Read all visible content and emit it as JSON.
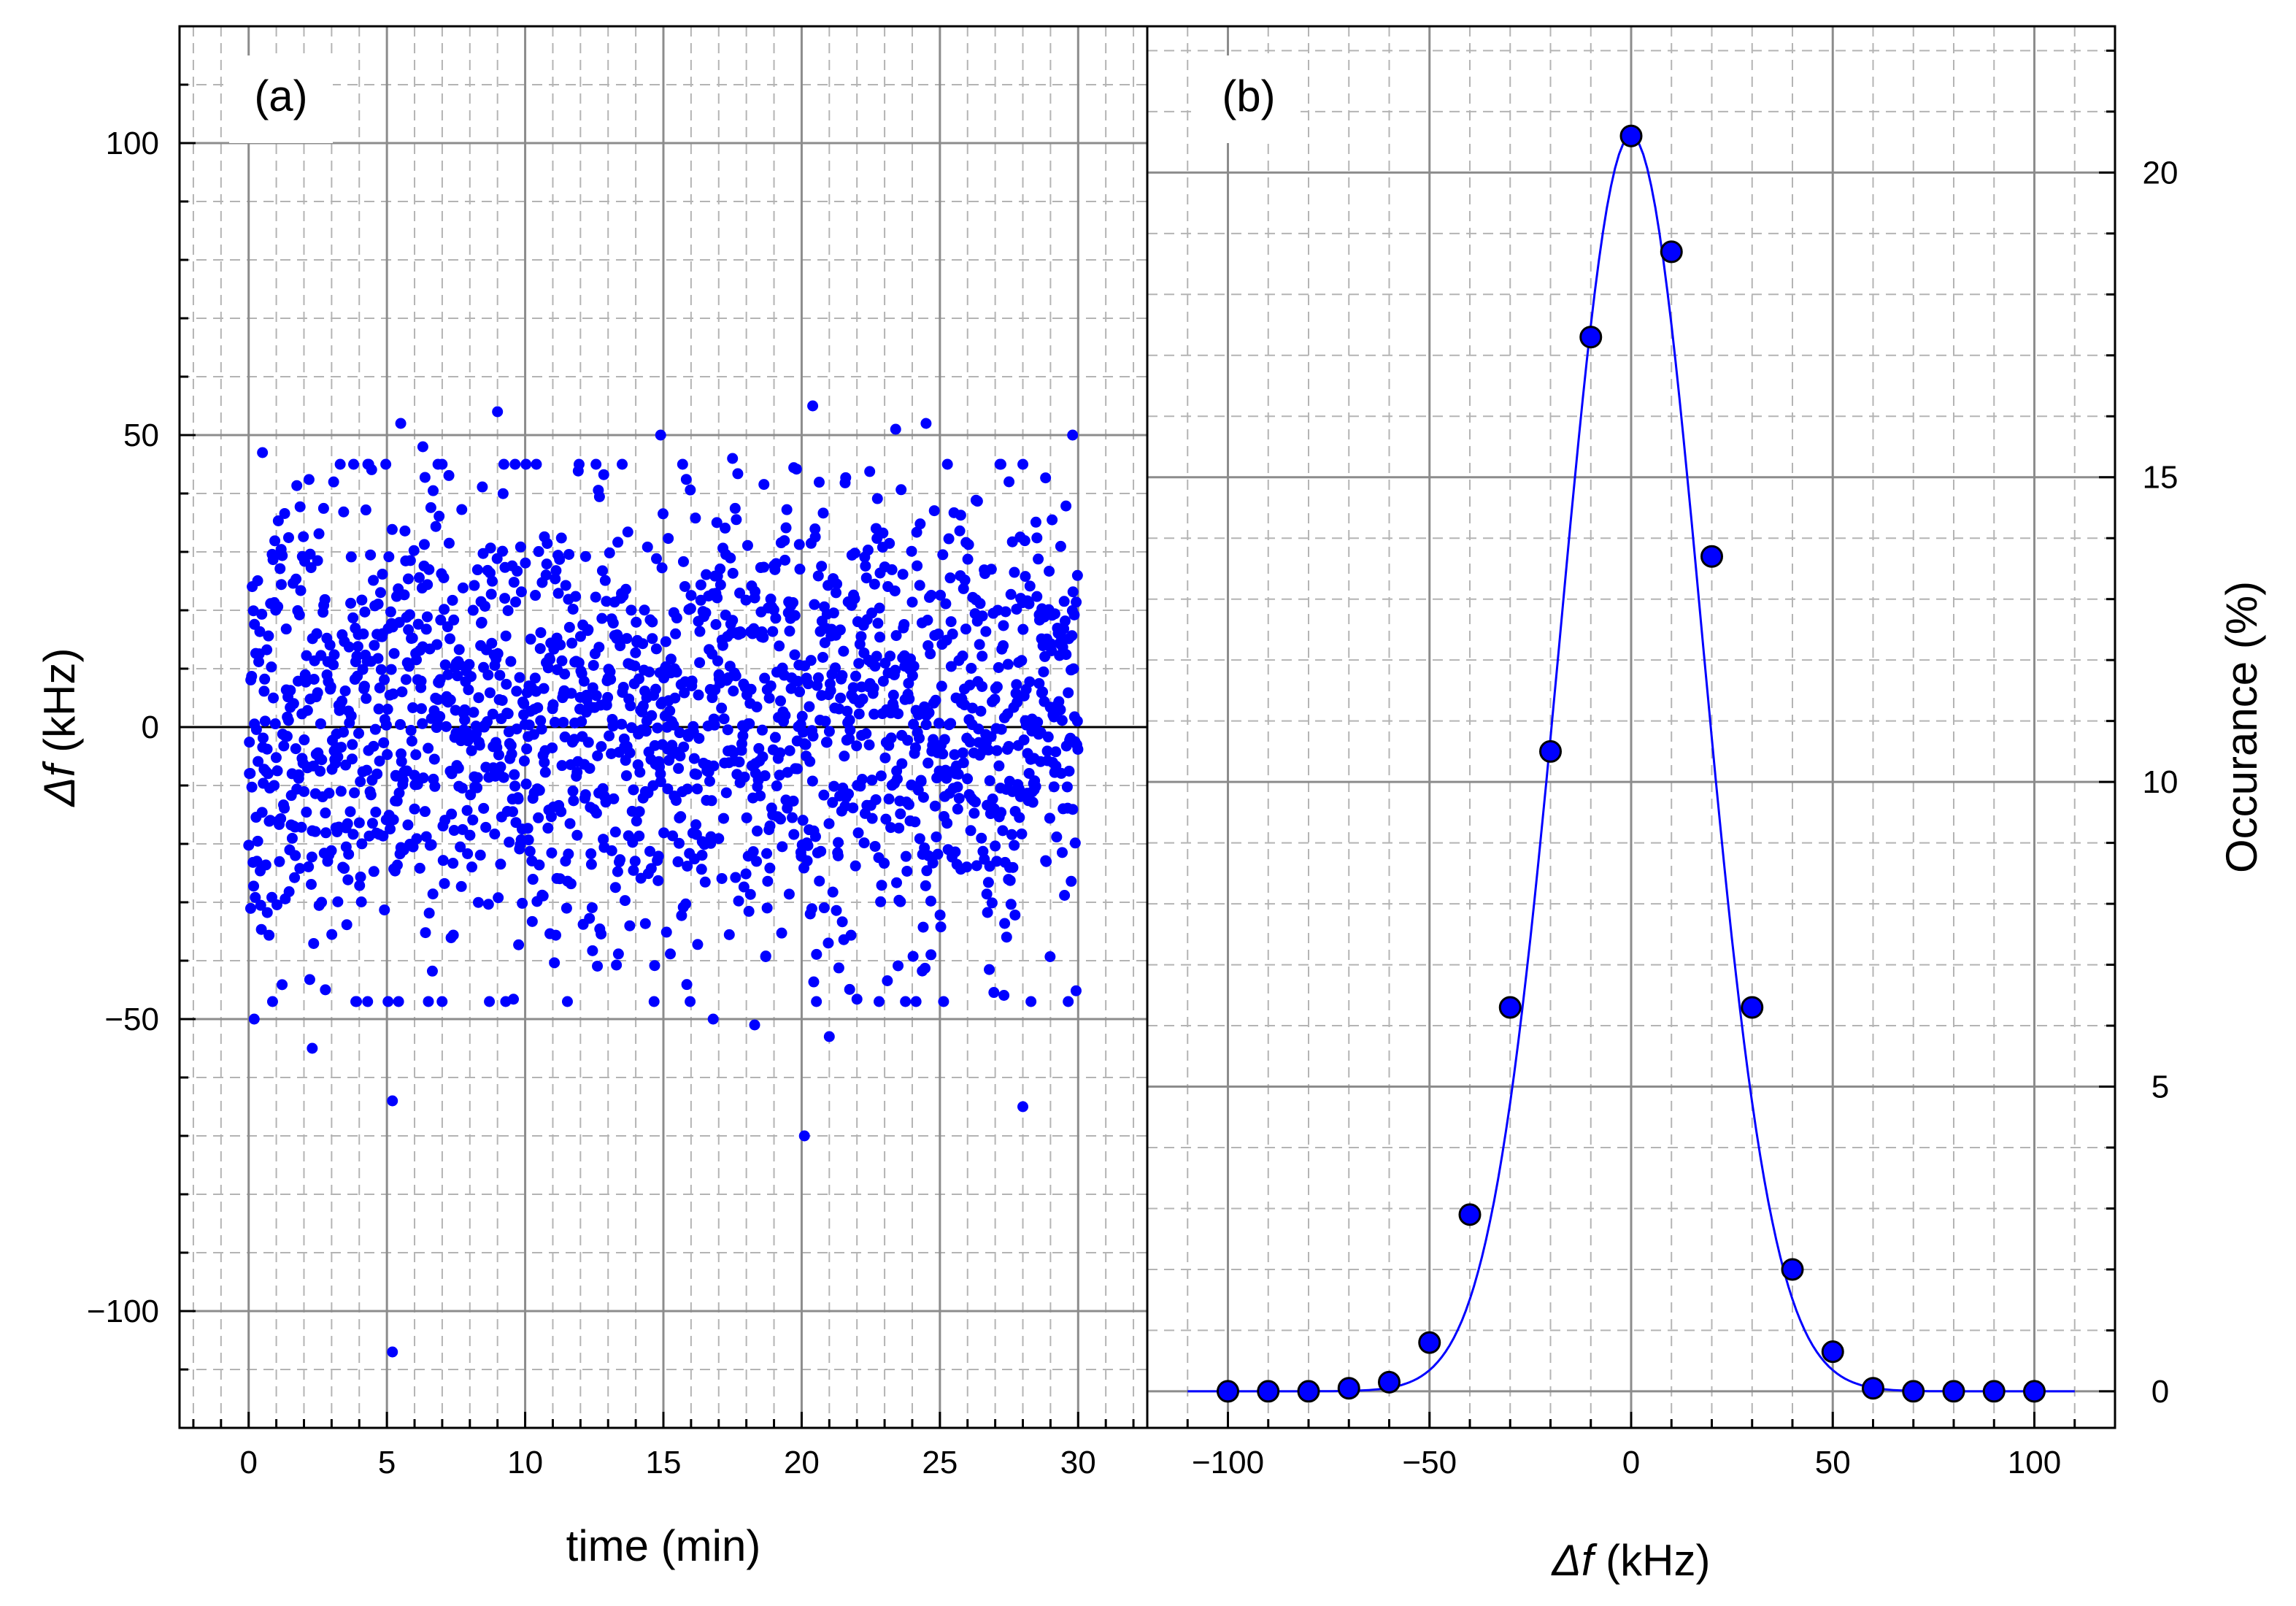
{
  "chart_data": [
    {
      "type": "scatter",
      "panel_label": "(a)",
      "xlabel": "time (min)",
      "ylabel_symbol": "Δf",
      "ylabel_unit": " (kHz)",
      "xlim": [
        -2.5,
        32.5
      ],
      "ylim": [
        -120,
        120
      ],
      "xticks": [
        0,
        5,
        10,
        15,
        20,
        25,
        30
      ],
      "yticks": [
        -100,
        -50,
        0,
        50,
        100
      ],
      "xtick_labels": [
        "0",
        "5",
        "10",
        "15",
        "20",
        "25",
        "30"
      ],
      "ytick_labels": [
        "−100",
        "−50",
        "0",
        "50",
        "100"
      ],
      "grid": true,
      "marker_color": "#0000ff",
      "scatter": {
        "n_points": 1800,
        "t_range": [
          0,
          30
        ],
        "spread_sd_khz": 19.5,
        "mean_khz": 0
      },
      "outliers": [
        [
          0.2,
          -50
        ],
        [
          2.3,
          -55
        ],
        [
          5.2,
          -64
        ],
        [
          5.2,
          -107
        ],
        [
          20.1,
          -70
        ],
        [
          28.0,
          -65
        ],
        [
          5.5,
          52
        ],
        [
          9.0,
          54
        ],
        [
          20.4,
          55
        ],
        [
          24.5,
          52
        ],
        [
          29.8,
          50
        ],
        [
          14.9,
          50
        ],
        [
          23.4,
          51
        ],
        [
          0.5,
          47
        ],
        [
          6.3,
          48
        ],
        [
          17.5,
          46
        ],
        [
          27.5,
          42
        ],
        [
          16.8,
          -50
        ],
        [
          18.3,
          -51
        ],
        [
          21.0,
          -53
        ]
      ]
    },
    {
      "type": "line",
      "panel_label": "(b)",
      "xlabel_symbol": "Δf",
      "xlabel_unit": " (kHz)",
      "ylabel": "Occurance (%)",
      "xlim": [
        -120,
        120
      ],
      "ylim": [
        -0.6,
        22.4
      ],
      "xticks": [
        -100,
        -50,
        0,
        50,
        100
      ],
      "yticks": [
        0,
        5,
        10,
        15,
        20
      ],
      "xtick_labels": [
        "−100",
        "−50",
        "0",
        "50",
        "100"
      ],
      "ytick_labels": [
        "0",
        "5",
        "10",
        "15",
        "20"
      ],
      "grid": true,
      "marker_color": "#0000ff",
      "x": [
        -100,
        -90,
        -80,
        -70,
        -60,
        -50,
        -40,
        -30,
        -20,
        -10,
        0,
        10,
        20,
        30,
        40,
        50,
        60,
        70,
        80,
        90,
        100
      ],
      "values": [
        0,
        0,
        0,
        0.05,
        0.15,
        0.8,
        2.9,
        6.3,
        10.5,
        17.3,
        20.6,
        18.7,
        13.7,
        6.3,
        2.0,
        0.65,
        0.05,
        0,
        0,
        0,
        0
      ],
      "fit": {
        "type": "gaussian",
        "amplitude": 20.6,
        "mean": 0,
        "sigma": 17.5
      }
    }
  ]
}
